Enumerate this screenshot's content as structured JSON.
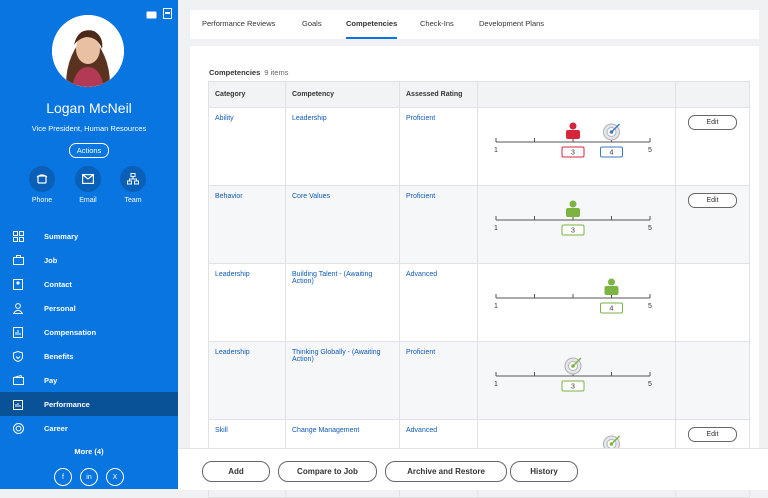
{
  "profile": {
    "name": "Logan McNeil",
    "title": "Vice President, Human Resources",
    "actions_label": "Actions"
  },
  "quick_actions": [
    {
      "label": "Phone",
      "icon": "phone-icon"
    },
    {
      "label": "Email",
      "icon": "email-icon"
    },
    {
      "label": "Team",
      "icon": "team-icon"
    }
  ],
  "nav": [
    {
      "label": "Summary",
      "icon": "summary-icon",
      "active": false
    },
    {
      "label": "Job",
      "icon": "job-icon",
      "active": false
    },
    {
      "label": "Contact",
      "icon": "contact-icon",
      "active": false
    },
    {
      "label": "Personal",
      "icon": "personal-icon",
      "active": false
    },
    {
      "label": "Compensation",
      "icon": "compensation-icon",
      "active": false
    },
    {
      "label": "Benefits",
      "icon": "benefits-icon",
      "active": false
    },
    {
      "label": "Pay",
      "icon": "pay-icon",
      "active": false
    },
    {
      "label": "Performance",
      "icon": "performance-icon",
      "active": true
    },
    {
      "label": "Career",
      "icon": "career-icon",
      "active": false
    }
  ],
  "more_label": "More (4)",
  "social": [
    "f",
    "in",
    "X"
  ],
  "tabs": [
    {
      "label": "Performance Reviews",
      "active": false
    },
    {
      "label": "Goals",
      "active": false
    },
    {
      "label": "Competencies",
      "active": true
    },
    {
      "label": "Check-Ins",
      "active": false
    },
    {
      "label": "Development Plans",
      "active": false
    }
  ],
  "competencies": {
    "title": "Competencies",
    "count": "9 items",
    "columns": [
      "Category",
      "Competency",
      "Assessed Rating",
      "",
      ""
    ],
    "scale_min": "1",
    "scale_max": "5",
    "edit_label": "Edit",
    "rows": [
      {
        "category": "Ability",
        "competency": "Leadership",
        "rating": "Proficient",
        "markers": [
          {
            "type": "person",
            "value": 3,
            "label": "3",
            "color": "#d6263b"
          },
          {
            "type": "target",
            "value": 4,
            "label": "4",
            "color": "#3a78c2"
          }
        ],
        "edit": true
      },
      {
        "category": "Behavior",
        "competency": "Core Values",
        "rating": "Proficient",
        "markers": [
          {
            "type": "person",
            "value": 3,
            "label": "3",
            "color": "#7cb342"
          }
        ],
        "edit": true
      },
      {
        "category": "Leadership",
        "competency": "Building Talent - (Awaiting Action)",
        "rating": "Advanced",
        "markers": [
          {
            "type": "person",
            "value": 4,
            "label": "4",
            "color": "#7cb342"
          }
        ],
        "edit": false
      },
      {
        "category": "Leadership",
        "competency": "Thinking Globally - (Awaiting Action)",
        "rating": "Proficient",
        "markers": [
          {
            "type": "target",
            "value": 3,
            "label": "3",
            "color": "#7cb342"
          }
        ],
        "edit": false
      },
      {
        "category": "Skill",
        "competency": "Change Management",
        "rating": "Advanced",
        "markers": [
          {
            "type": "target",
            "value": 4,
            "label": "4",
            "color": "#7cb342"
          }
        ],
        "edit": true
      }
    ]
  },
  "footer_buttons": [
    "Add",
    "Compare to Job",
    "Archive and Restore",
    "History"
  ],
  "colors": {
    "sidebar": "#0875e1",
    "active_nav": "#0a5298",
    "link": "#0f5ab5"
  }
}
